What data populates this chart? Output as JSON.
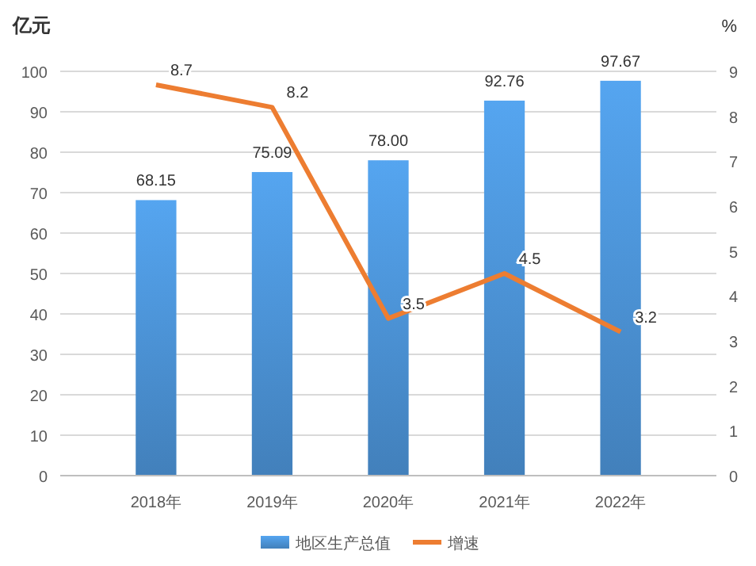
{
  "chart_data": {
    "type": "bar",
    "ylabel": "亿元",
    "y2label": "%",
    "categories": [
      "2018年",
      "2019年",
      "2020年",
      "2021年",
      "2022年"
    ],
    "series": [
      {
        "name": "地区生产总值",
        "color": "#4a8fd0",
        "values": [
          68.15,
          75.09,
          78.0,
          92.76,
          97.67
        ],
        "value_labels": [
          "68.15",
          "75.09",
          "78.00",
          "92.76",
          "97.67"
        ]
      },
      {
        "name": "增速",
        "type": "line",
        "axis": "y2",
        "color": "#ed7d31",
        "values": [
          8.7,
          8.2,
          3.5,
          4.5,
          3.2
        ],
        "value_labels": [
          "8.7",
          "8.2",
          "3.5",
          "4.5",
          "3.2"
        ]
      }
    ],
    "ylim": [
      0,
      100
    ],
    "yticks": [
      0,
      10,
      20,
      30,
      40,
      50,
      60,
      70,
      80,
      90,
      100
    ],
    "y2lim": [
      0,
      9
    ],
    "y2ticks": [
      0,
      1,
      2,
      3,
      4,
      5,
      6,
      7,
      8,
      9
    ],
    "grid": "y",
    "legend": "bottom",
    "marker": "none",
    "line_style": "solid"
  }
}
